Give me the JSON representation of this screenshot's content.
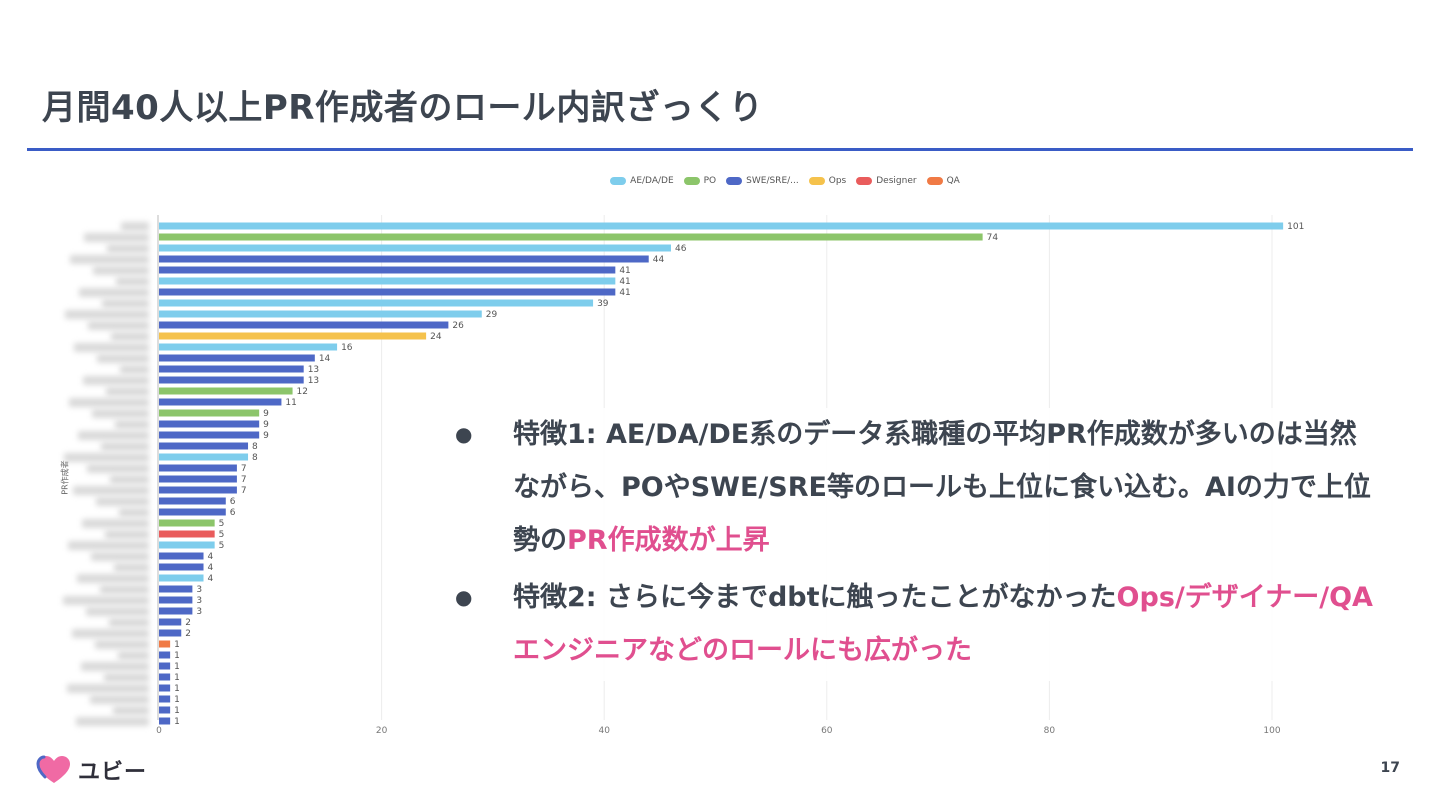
{
  "slide": {
    "title": "月間40人以上PR作成者のロール内訳ざっくり",
    "page_number": "17",
    "logo_text": "ユビー"
  },
  "notes": [
    {
      "parts": [
        {
          "text": "特徴1: AE/DA/DE系のデータ系職種の平均PR作成数が多いのは当然ながら、POやSWE/SRE等のロールも上位に食い込む。AIの力で上位勢の",
          "highlight": false
        },
        {
          "text": "PR作成数が上昇",
          "highlight": true
        }
      ]
    },
    {
      "parts": [
        {
          "text": "特徴2: さらに今までdbtに触ったことがなかった",
          "highlight": false
        },
        {
          "text": "Ops/デザイナー/QAエンジニアなどのロールにも広がった",
          "highlight": true
        }
      ]
    }
  ],
  "chart_data": {
    "type": "bar",
    "orientation": "horizontal",
    "ylabel": "PR作成者",
    "xlim": [
      0,
      100
    ],
    "x_ticks": [
      0,
      20,
      40,
      60,
      80,
      100
    ],
    "grid": true,
    "legend_position": "top-center",
    "legend": [
      {
        "name": "AE/DA/DE",
        "color": "#7ecdec"
      },
      {
        "name": "PO",
        "color": "#8cc56a"
      },
      {
        "name": "SWE/SRE/...",
        "color": "#4e68c6"
      },
      {
        "name": "Ops",
        "color": "#f5c24c"
      },
      {
        "name": "Designer",
        "color": "#e95c5c"
      },
      {
        "name": "QA",
        "color": "#f07a45"
      }
    ],
    "bars": [
      {
        "value": 101,
        "role": "AE/DA/DE"
      },
      {
        "value": 74,
        "role": "PO"
      },
      {
        "value": 46,
        "role": "AE/DA/DE"
      },
      {
        "value": 44,
        "role": "SWE/SRE/..."
      },
      {
        "value": 41,
        "role": "SWE/SRE/..."
      },
      {
        "value": 41,
        "role": "AE/DA/DE"
      },
      {
        "value": 41,
        "role": "SWE/SRE/..."
      },
      {
        "value": 39,
        "role": "AE/DA/DE"
      },
      {
        "value": 29,
        "role": "AE/DA/DE"
      },
      {
        "value": 26,
        "role": "SWE/SRE/..."
      },
      {
        "value": 24,
        "role": "Ops"
      },
      {
        "value": 16,
        "role": "AE/DA/DE"
      },
      {
        "value": 14,
        "role": "SWE/SRE/..."
      },
      {
        "value": 13,
        "role": "SWE/SRE/..."
      },
      {
        "value": 13,
        "role": "SWE/SRE/..."
      },
      {
        "value": 12,
        "role": "PO"
      },
      {
        "value": 11,
        "role": "SWE/SRE/..."
      },
      {
        "value": 9,
        "role": "PO"
      },
      {
        "value": 9,
        "role": "SWE/SRE/..."
      },
      {
        "value": 9,
        "role": "SWE/SRE/..."
      },
      {
        "value": 8,
        "role": "SWE/SRE/..."
      },
      {
        "value": 8,
        "role": "AE/DA/DE"
      },
      {
        "value": 7,
        "role": "SWE/SRE/..."
      },
      {
        "value": 7,
        "role": "SWE/SRE/..."
      },
      {
        "value": 7,
        "role": "SWE/SRE/..."
      },
      {
        "value": 6,
        "role": "SWE/SRE/..."
      },
      {
        "value": 6,
        "role": "SWE/SRE/..."
      },
      {
        "value": 5,
        "role": "PO"
      },
      {
        "value": 5,
        "role": "Designer"
      },
      {
        "value": 5,
        "role": "AE/DA/DE"
      },
      {
        "value": 4,
        "role": "SWE/SRE/..."
      },
      {
        "value": 4,
        "role": "SWE/SRE/..."
      },
      {
        "value": 4,
        "role": "AE/DA/DE"
      },
      {
        "value": 3,
        "role": "SWE/SRE/..."
      },
      {
        "value": 3,
        "role": "SWE/SRE/..."
      },
      {
        "value": 3,
        "role": "SWE/SRE/..."
      },
      {
        "value": 2,
        "role": "SWE/SRE/..."
      },
      {
        "value": 2,
        "role": "SWE/SRE/..."
      },
      {
        "value": 1,
        "role": "QA"
      },
      {
        "value": 1,
        "role": "SWE/SRE/..."
      },
      {
        "value": 1,
        "role": "SWE/SRE/..."
      },
      {
        "value": 1,
        "role": "SWE/SRE/..."
      },
      {
        "value": 1,
        "role": "SWE/SRE/..."
      },
      {
        "value": 1,
        "role": "SWE/SRE/..."
      },
      {
        "value": 1,
        "role": "SWE/SRE/..."
      },
      {
        "value": 1,
        "role": "SWE/SRE/..."
      }
    ]
  }
}
